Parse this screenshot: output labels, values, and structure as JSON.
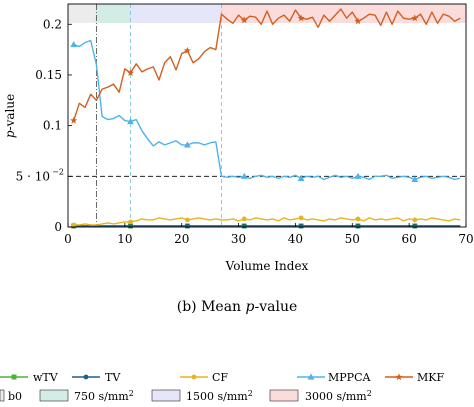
{
  "chart_data": {
    "type": "line",
    "caption": "(b) Mean p-value",
    "caption_prefix": "(b) Mean ",
    "caption_italic": "p",
    "caption_suffix": "-value",
    "xlabel": "Volume Index",
    "ylabel": "p-value",
    "ylabel_italic": "p",
    "ylabel_suffix": "-value",
    "xlim": [
      0,
      70
    ],
    "ylim": [
      0,
      0.22
    ],
    "x_ticks": [
      0,
      10,
      20,
      30,
      40,
      50,
      60,
      70
    ],
    "x_tick_labels": [
      "0",
      "10",
      "20",
      "30",
      "40",
      "50",
      "60",
      "70"
    ],
    "y_ticks": [
      0,
      0.05,
      0.1,
      0.15,
      0.2
    ],
    "y_tick_labels": [
      "0",
      "5 · 10",
      "0.1",
      "0.15",
      "0.2"
    ],
    "y_tick_exponent": "−2",
    "reference_line": {
      "y": 0.05,
      "style": "dashed"
    },
    "shell_boundaries": [
      5,
      11,
      27
    ],
    "shells": [
      {
        "label": "b0",
        "x_range": [
          0,
          5
        ],
        "color": "#ececec"
      },
      {
        "label": "750 s/mm",
        "sup": "2",
        "x_range": [
          5,
          11
        ],
        "color": "#d3ece6"
      },
      {
        "label": "1500 s/mm",
        "sup": "2",
        "x_range": [
          11,
          27
        ],
        "color": "#e6e6fa"
      },
      {
        "label": "3000 s/mm",
        "sup": "2",
        "x_range": [
          27,
          70
        ],
        "color": "#fbdcdc"
      }
    ],
    "series": [
      {
        "name": "wTV",
        "color": "#4daf3c",
        "marker": "square",
        "x": [
          1,
          2,
          3,
          4,
          5,
          6,
          7,
          8,
          9,
          10,
          11,
          12,
          13,
          14,
          15,
          16,
          17,
          18,
          19,
          20,
          21,
          22,
          23,
          24,
          25,
          26,
          27,
          28,
          29,
          30,
          31,
          32,
          33,
          34,
          35,
          36,
          37,
          38,
          39,
          40,
          41,
          42,
          43,
          44,
          45,
          46,
          47,
          48,
          49,
          50,
          51,
          52,
          53,
          54,
          55,
          56,
          57,
          58,
          59,
          60,
          61,
          62,
          63,
          64,
          65,
          66,
          67,
          68,
          69
        ],
        "values": [
          0.001,
          0.001,
          0.001,
          0.001,
          0.001,
          0.001,
          0.001,
          0.001,
          0.001,
          0.001,
          0.001,
          0.001,
          0.001,
          0.001,
          0.001,
          0.001,
          0.001,
          0.001,
          0.001,
          0.001,
          0.001,
          0.001,
          0.001,
          0.001,
          0.001,
          0.001,
          0.001,
          0.001,
          0.001,
          0.001,
          0.001,
          0.001,
          0.001,
          0.001,
          0.001,
          0.001,
          0.001,
          0.001,
          0.001,
          0.001,
          0.001,
          0.001,
          0.001,
          0.001,
          0.001,
          0.001,
          0.001,
          0.001,
          0.001,
          0.001,
          0.001,
          0.001,
          0.001,
          0.001,
          0.001,
          0.001,
          0.001,
          0.001,
          0.001,
          0.001,
          0.001,
          0.001,
          0.001,
          0.001,
          0.001,
          0.001,
          0.001,
          0.001,
          0.001
        ]
      },
      {
        "name": "TV",
        "color": "#1f5f8b",
        "marker": "circle",
        "x": [
          1,
          2,
          3,
          4,
          5,
          6,
          7,
          8,
          9,
          10,
          11,
          12,
          13,
          14,
          15,
          16,
          17,
          18,
          19,
          20,
          21,
          22,
          23,
          24,
          25,
          26,
          27,
          28,
          29,
          30,
          31,
          32,
          33,
          34,
          35,
          36,
          37,
          38,
          39,
          40,
          41,
          42,
          43,
          44,
          45,
          46,
          47,
          48,
          49,
          50,
          51,
          52,
          53,
          54,
          55,
          56,
          57,
          58,
          59,
          60,
          61,
          62,
          63,
          64,
          65,
          66,
          67,
          68,
          69
        ],
        "values": [
          0.001,
          0.001,
          0.001,
          0.001,
          0.001,
          0.001,
          0.001,
          0.001,
          0.001,
          0.001,
          0.001,
          0.001,
          0.001,
          0.001,
          0.001,
          0.001,
          0.001,
          0.001,
          0.001,
          0.001,
          0.001,
          0.001,
          0.001,
          0.001,
          0.001,
          0.001,
          0.001,
          0.001,
          0.001,
          0.001,
          0.001,
          0.001,
          0.001,
          0.001,
          0.001,
          0.001,
          0.001,
          0.001,
          0.001,
          0.001,
          0.001,
          0.001,
          0.001,
          0.001,
          0.001,
          0.001,
          0.001,
          0.001,
          0.001,
          0.001,
          0.001,
          0.001,
          0.001,
          0.001,
          0.001,
          0.001,
          0.001,
          0.001,
          0.001,
          0.001,
          0.001,
          0.001,
          0.001,
          0.001,
          0.001,
          0.001,
          0.001,
          0.001,
          0.001
        ]
      },
      {
        "name": "CF",
        "color": "#e8b321",
        "marker": "circle",
        "x": [
          1,
          2,
          3,
          4,
          5,
          6,
          7,
          8,
          9,
          10,
          11,
          12,
          13,
          14,
          15,
          16,
          17,
          18,
          19,
          20,
          21,
          22,
          23,
          24,
          25,
          26,
          27,
          28,
          29,
          30,
          31,
          32,
          33,
          34,
          35,
          36,
          37,
          38,
          39,
          40,
          41,
          42,
          43,
          44,
          45,
          46,
          47,
          48,
          49,
          50,
          51,
          52,
          53,
          54,
          55,
          56,
          57,
          58,
          59,
          60,
          61,
          62,
          63,
          64,
          65,
          66,
          67,
          68,
          69
        ],
        "values": [
          0.002,
          0.002,
          0.003,
          0.002,
          0.002,
          0.003,
          0.004,
          0.003,
          0.004,
          0.005,
          0.005,
          0.006,
          0.008,
          0.007,
          0.007,
          0.009,
          0.008,
          0.007,
          0.008,
          0.009,
          0.007,
          0.008,
          0.009,
          0.008,
          0.007,
          0.008,
          0.007,
          0.007,
          0.008,
          0.006,
          0.008,
          0.007,
          0.009,
          0.008,
          0.007,
          0.008,
          0.006,
          0.009,
          0.007,
          0.008,
          0.009,
          0.007,
          0.008,
          0.007,
          0.006,
          0.008,
          0.007,
          0.009,
          0.008,
          0.007,
          0.008,
          0.006,
          0.009,
          0.007,
          0.008,
          0.007,
          0.008,
          0.009,
          0.006,
          0.008,
          0.007,
          0.008,
          0.007,
          0.009,
          0.008,
          0.007,
          0.006,
          0.008,
          0.007
        ]
      },
      {
        "name": "MPPCA",
        "color": "#4fb3e8",
        "marker": "triangle",
        "x": [
          1,
          2,
          3,
          4,
          5,
          6,
          7,
          8,
          9,
          10,
          11,
          12,
          13,
          14,
          15,
          16,
          17,
          18,
          19,
          20,
          21,
          22,
          23,
          24,
          25,
          26,
          27,
          28,
          29,
          30,
          31,
          32,
          33,
          34,
          35,
          36,
          37,
          38,
          39,
          40,
          41,
          42,
          43,
          44,
          45,
          46,
          47,
          48,
          49,
          50,
          51,
          52,
          53,
          54,
          55,
          56,
          57,
          58,
          59,
          60,
          61,
          62,
          63,
          64,
          65,
          66,
          67,
          68,
          69
        ],
        "values": [
          0.18,
          0.178,
          0.182,
          0.184,
          0.16,
          0.109,
          0.106,
          0.107,
          0.11,
          0.105,
          0.104,
          0.106,
          0.095,
          0.087,
          0.08,
          0.084,
          0.081,
          0.083,
          0.085,
          0.081,
          0.081,
          0.083,
          0.083,
          0.081,
          0.083,
          0.084,
          0.05,
          0.049,
          0.05,
          0.049,
          0.05,
          0.048,
          0.05,
          0.051,
          0.049,
          0.05,
          0.048,
          0.05,
          0.049,
          0.051,
          0.048,
          0.05,
          0.049,
          0.05,
          0.047,
          0.049,
          0.051,
          0.049,
          0.05,
          0.048,
          0.05,
          0.049,
          0.047,
          0.05,
          0.05,
          0.051,
          0.048,
          0.049,
          0.05,
          0.049,
          0.047,
          0.049,
          0.05,
          0.048,
          0.049,
          0.05,
          0.049,
          0.047,
          0.048
        ]
      },
      {
        "name": "MKF",
        "color": "#d35f1f",
        "marker": "star",
        "x": [
          1,
          2,
          3,
          4,
          5,
          6,
          7,
          8,
          9,
          10,
          11,
          12,
          13,
          14,
          15,
          16,
          17,
          18,
          19,
          20,
          21,
          22,
          23,
          24,
          25,
          26,
          27,
          28,
          29,
          30,
          31,
          32,
          33,
          34,
          35,
          36,
          37,
          38,
          39,
          40,
          41,
          42,
          43,
          44,
          45,
          46,
          47,
          48,
          49,
          50,
          51,
          52,
          53,
          54,
          55,
          56,
          57,
          58,
          59,
          60,
          61,
          62,
          63,
          64,
          65,
          66,
          67,
          68,
          69
        ],
        "values": [
          0.105,
          0.122,
          0.118,
          0.131,
          0.125,
          0.136,
          0.138,
          0.141,
          0.133,
          0.156,
          0.152,
          0.161,
          0.153,
          0.156,
          0.158,
          0.145,
          0.162,
          0.168,
          0.155,
          0.171,
          0.174,
          0.162,
          0.166,
          0.173,
          0.177,
          0.175,
          0.21,
          0.205,
          0.201,
          0.209,
          0.204,
          0.208,
          0.207,
          0.2,
          0.213,
          0.2,
          0.206,
          0.209,
          0.203,
          0.214,
          0.206,
          0.205,
          0.207,
          0.197,
          0.209,
          0.203,
          0.209,
          0.215,
          0.206,
          0.212,
          0.203,
          0.206,
          0.21,
          0.209,
          0.199,
          0.212,
          0.2,
          0.213,
          0.206,
          0.205,
          0.206,
          0.21,
          0.2,
          0.212,
          0.201,
          0.21,
          0.208,
          0.203,
          0.206
        ]
      }
    ]
  }
}
